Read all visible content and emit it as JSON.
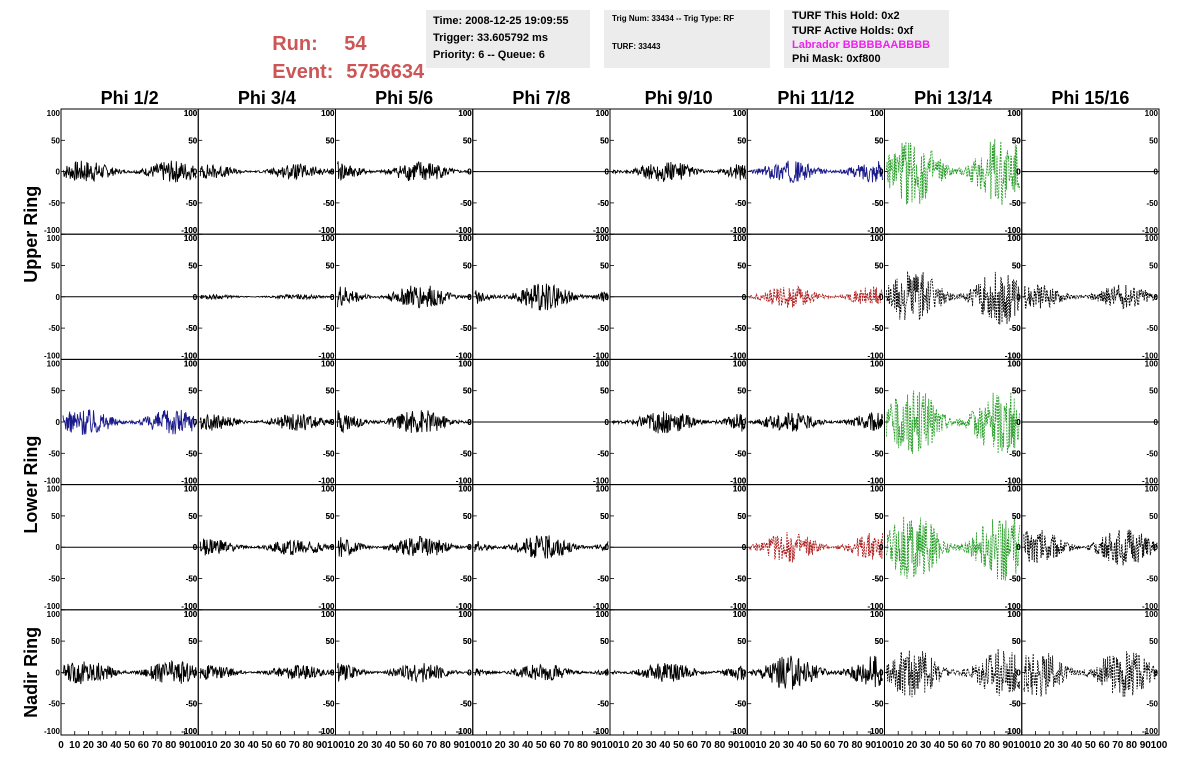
{
  "header": {
    "run_label": "Run:",
    "run_value": "54",
    "event_label": "Event:",
    "event_value": "5756634",
    "title_color": "#cc5555",
    "time": "Time: 2008-12-25 19:09:55",
    "trigger": "Trigger: 33.605792 ms",
    "priority": "Priority: 6 -- Queue: 6",
    "trig_num": "Trig Num: 33434 -- Trig Type: RF",
    "turf": "TURF: 33443",
    "turf_hold": "TURF This Hold: 0x2",
    "turf_active": "TURF Active Holds: 0xf",
    "labrador": "Labrador BBBBBAABBBB",
    "labrador_color": "#ee22ee",
    "phi_mask": "Phi Mask: 0xf800"
  },
  "chart_data": {
    "type": "line",
    "columns": [
      "Phi 1/2",
      "Phi 3/4",
      "Phi 5/6",
      "Phi 7/8",
      "Phi 9/10",
      "Phi 11/12",
      "Phi 13/14",
      "Phi 15/16"
    ],
    "ring_labels": [
      "Upper Ring",
      "Lower Ring",
      "Nadir Ring"
    ],
    "ylim": [
      -100,
      100
    ],
    "xlim": [
      0,
      100
    ],
    "y_ticks": [
      "100",
      "50",
      "0",
      "-50",
      "-100"
    ],
    "x_tick_labels": [
      "0",
      "10",
      "20",
      "30",
      "40",
      "50",
      "60",
      "70",
      "80",
      "90",
      "100"
    ],
    "colors": {
      "black": "#000000",
      "blue": "#1a1a8c",
      "red": "#b02020",
      "green": "#1f9a1f"
    },
    "panels": [
      [
        {
          "color": "black",
          "amp": 18,
          "dashed": false
        },
        {
          "color": "black",
          "amp": 12,
          "dashed": false
        },
        {
          "color": "black",
          "amp": 18,
          "dashed": false
        },
        {
          "color": "black",
          "amp": 0,
          "dashed": false
        },
        {
          "color": "black",
          "amp": 18,
          "dashed": false
        },
        {
          "color": "blue",
          "amp": 18,
          "dashed": false
        },
        {
          "color": "green",
          "amp": 55,
          "dashed": true
        },
        {
          "color": "black",
          "amp": 0,
          "dashed": false
        }
      ],
      [
        {
          "color": "black",
          "amp": 0,
          "dashed": false
        },
        {
          "color": "black",
          "amp": 4,
          "dashed": false
        },
        {
          "color": "black",
          "amp": 20,
          "dashed": false
        },
        {
          "color": "black",
          "amp": 22,
          "dashed": false
        },
        {
          "color": "black",
          "amp": 0,
          "dashed": false
        },
        {
          "color": "red",
          "amp": 18,
          "dashed": true
        },
        {
          "color": "black",
          "amp": 45,
          "dashed": true
        },
        {
          "color": "black",
          "amp": 20,
          "dashed": true
        }
      ],
      [
        {
          "color": "blue",
          "amp": 22,
          "dashed": false
        },
        {
          "color": "black",
          "amp": 14,
          "dashed": false
        },
        {
          "color": "black",
          "amp": 20,
          "dashed": false
        },
        {
          "color": "black",
          "amp": 0,
          "dashed": false
        },
        {
          "color": "black",
          "amp": 20,
          "dashed": false
        },
        {
          "color": "black",
          "amp": 16,
          "dashed": false
        },
        {
          "color": "green",
          "amp": 55,
          "dashed": true
        },
        {
          "color": "black",
          "amp": 0,
          "dashed": false
        }
      ],
      [
        {
          "color": "black",
          "amp": 0,
          "dashed": false
        },
        {
          "color": "black",
          "amp": 14,
          "dashed": false
        },
        {
          "color": "black",
          "amp": 18,
          "dashed": false
        },
        {
          "color": "black",
          "amp": 20,
          "dashed": false
        },
        {
          "color": "black",
          "amp": 0,
          "dashed": false
        },
        {
          "color": "red",
          "amp": 25,
          "dashed": true
        },
        {
          "color": "green",
          "amp": 55,
          "dashed": true
        },
        {
          "color": "black",
          "amp": 30,
          "dashed": true
        }
      ],
      [
        {
          "color": "black",
          "amp": 20,
          "dashed": false
        },
        {
          "color": "black",
          "amp": 12,
          "dashed": false
        },
        {
          "color": "black",
          "amp": 16,
          "dashed": false
        },
        {
          "color": "black",
          "amp": 14,
          "dashed": false
        },
        {
          "color": "black",
          "amp": 16,
          "dashed": false
        },
        {
          "color": "black",
          "amp": 28,
          "dashed": false
        },
        {
          "color": "black",
          "amp": 40,
          "dashed": true
        },
        {
          "color": "black",
          "amp": 40,
          "dashed": true
        }
      ]
    ]
  }
}
